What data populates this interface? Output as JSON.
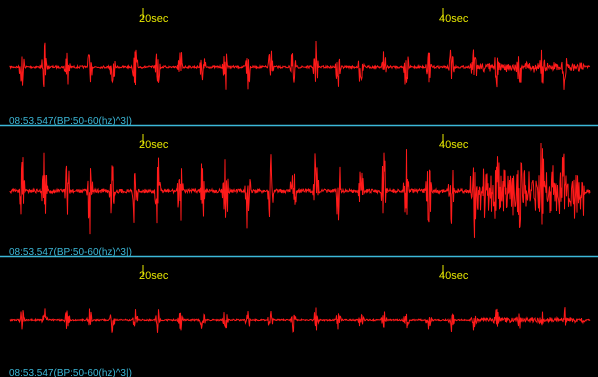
{
  "panels": [
    {
      "time_labels": [
        "20sec",
        "40sec"
      ],
      "channel_label": "08:53.547(BP:50-60(hz)^3|)"
    },
    {
      "time_labels": [
        "20sec",
        "40sec"
      ],
      "channel_label": "08:53.547(BP:50-60(hz)^3|)"
    },
    {
      "time_labels": [
        "20sec",
        "40sec"
      ],
      "channel_label": "08:53.547(BP:50-60(hz)^3|)"
    }
  ]
}
